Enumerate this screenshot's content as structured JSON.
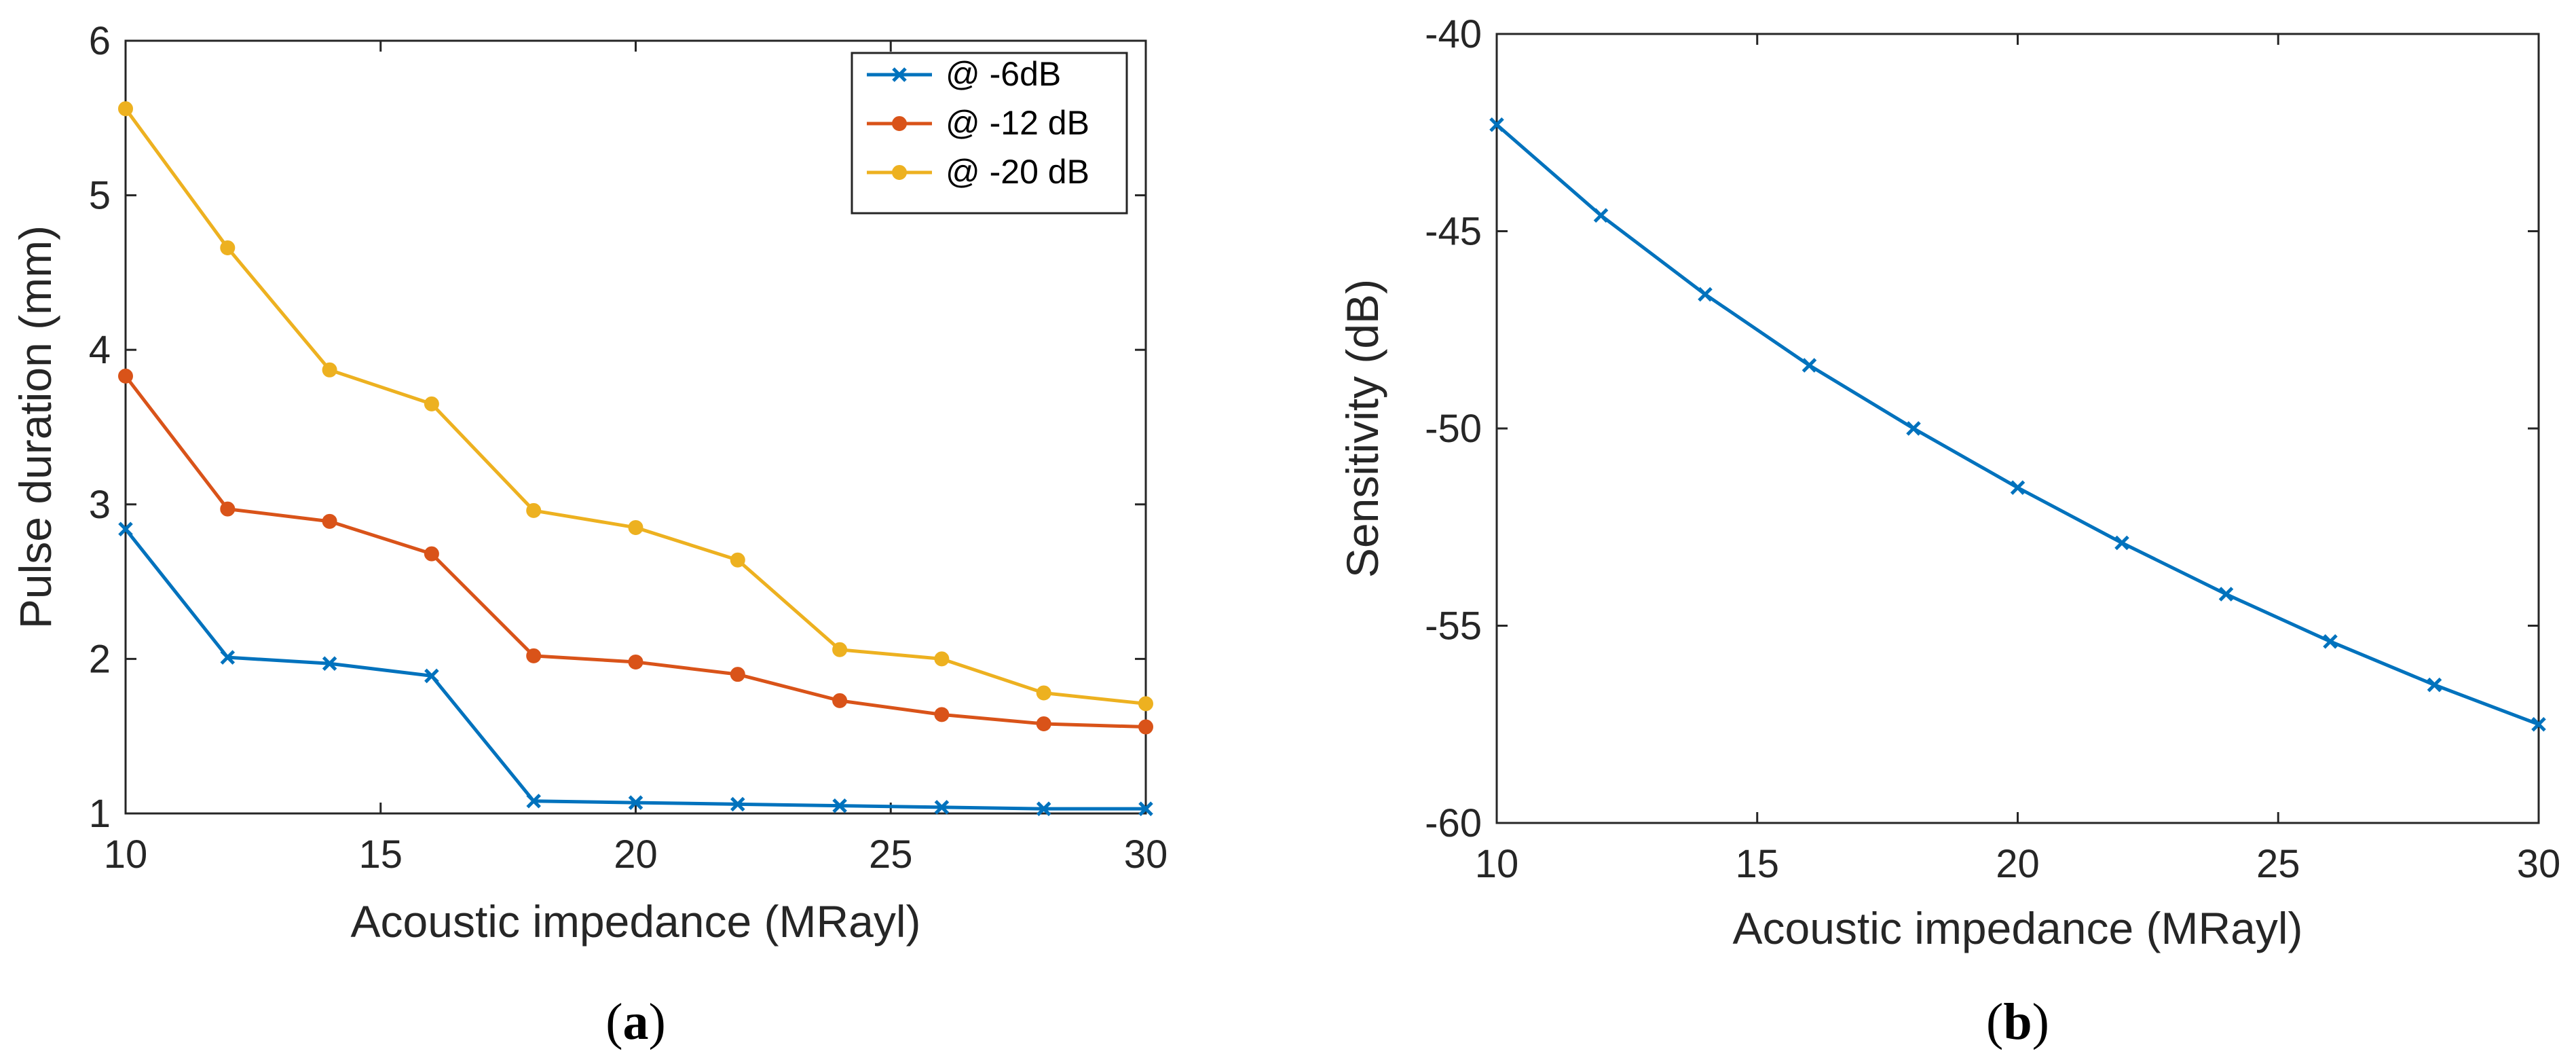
{
  "colors": {
    "axis": "#262626",
    "series_blue": "#0072BD",
    "series_orange": "#D95319",
    "series_yellow": "#EDB120"
  },
  "chart_data": [
    {
      "id": "a",
      "type": "line",
      "panel_label": "a",
      "title": "",
      "xlabel": "Acoustic impedance (MRayl)",
      "ylabel": "Pulse duration (mm)",
      "xlim": [
        10,
        30
      ],
      "ylim": [
        1,
        6
      ],
      "xticks": [
        10,
        15,
        20,
        25,
        30
      ],
      "yticks": [
        1,
        2,
        3,
        4,
        5,
        6
      ],
      "grid": false,
      "legend_position": "top-right",
      "x": [
        10,
        12,
        14,
        16,
        18,
        20,
        22,
        24,
        26,
        28,
        30
      ],
      "series": [
        {
          "name": "@ -6dB",
          "color": "#0072BD",
          "marker": "x",
          "values": [
            2.84,
            2.01,
            1.97,
            1.89,
            1.08,
            1.07,
            1.06,
            1.05,
            1.04,
            1.03,
            1.03
          ]
        },
        {
          "name": "@ -12 dB",
          "color": "#D95319",
          "marker": "dot",
          "values": [
            3.83,
            2.97,
            2.89,
            2.68,
            2.02,
            1.98,
            1.9,
            1.73,
            1.64,
            1.58,
            1.56
          ]
        },
        {
          "name": "@ -20 dB",
          "color": "#EDB120",
          "marker": "dot",
          "values": [
            5.56,
            4.66,
            3.87,
            3.65,
            2.96,
            2.85,
            2.64,
            2.06,
            2.0,
            1.78,
            1.71
          ]
        }
      ]
    },
    {
      "id": "b",
      "type": "line",
      "panel_label": "b",
      "title": "",
      "xlabel": "Acoustic impedance (MRayl)",
      "ylabel": "Sensitivity (dB)",
      "xlim": [
        10,
        30
      ],
      "ylim": [
        -60,
        -40
      ],
      "xticks": [
        10,
        15,
        20,
        25,
        30
      ],
      "yticks": [
        -60,
        -55,
        -50,
        -45,
        -40
      ],
      "grid": false,
      "legend_position": "none",
      "x": [
        10,
        12,
        14,
        16,
        18,
        20,
        22,
        24,
        26,
        28,
        30
      ],
      "series": [
        {
          "name": "Sensitivity",
          "color": "#0072BD",
          "marker": "x",
          "values": [
            -42.3,
            -44.6,
            -46.6,
            -48.4,
            -50.0,
            -51.5,
            -52.9,
            -54.2,
            -55.4,
            -56.5,
            -57.5
          ]
        }
      ]
    }
  ]
}
